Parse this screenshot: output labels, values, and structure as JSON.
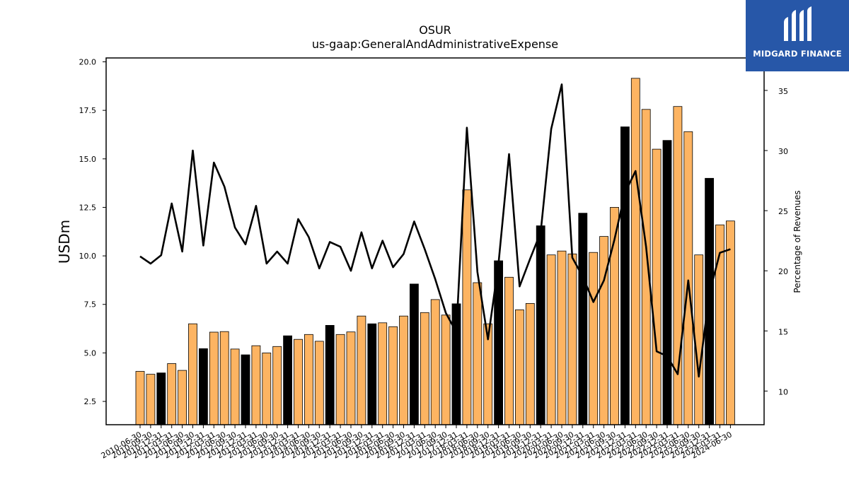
{
  "logo": {
    "text": "MIDGARD FINANCE"
  },
  "chart_data": {
    "type": "bar+line",
    "title": "OSUR",
    "subtitle": "us-gaap:GeneralAndAdministrativeExpense",
    "ylabel": "USDm",
    "y2label": "Percentage of Revenues",
    "ylim": [
      1.3,
      20.2
    ],
    "y2lim": [
      7.2,
      37.7
    ],
    "yticks": [
      "2.5",
      "5.0",
      "7.5",
      "10.0",
      "12.5",
      "15.0",
      "17.5",
      "20.0"
    ],
    "y2ticks": [
      "10",
      "15",
      "20",
      "25",
      "30",
      "35"
    ],
    "colors": {
      "quarter": "#fdb462",
      "annual": "#000000",
      "line": "#000000"
    },
    "categories": [
      "2010-06-30",
      "2010-09-30",
      "2010-12-31",
      "2011-03-31",
      "2011-06-30",
      "2011-09-30",
      "2011-12-31",
      "2012-03-31",
      "2012-06-30",
      "2012-09-30",
      "2012-12-31",
      "2013-03-31",
      "2013-06-30",
      "2013-09-30",
      "2013-12-31",
      "2014-03-31",
      "2014-06-30",
      "2014-09-30",
      "2014-12-31",
      "2015-03-31",
      "2015-06-30",
      "2015-09-30",
      "2015-12-31",
      "2016-03-31",
      "2016-06-30",
      "2016-09-30",
      "2016-12-31",
      "2017-03-31",
      "2017-06-30",
      "2017-09-30",
      "2017-12-31",
      "2018-03-31",
      "2018-06-30",
      "2018-09-30",
      "2018-12-31",
      "2019-03-31",
      "2019-06-30",
      "2019-09-30",
      "2019-12-31",
      "2020-03-31",
      "2020-06-30",
      "2020-09-30",
      "2020-12-31",
      "2021-03-31",
      "2021-06-30",
      "2021-09-30",
      "2021-12-31",
      "2022-03-31",
      "2022-06-30",
      "2022-09-30",
      "2022-12-31",
      "2023-03-31",
      "2023-06-30",
      "2023-09-30",
      "2023-12-31",
      "2024-03-31",
      "2024-06-30"
    ],
    "xticklabels": [
      "2010-06-30",
      "2010-09-30",
      "2010-12-31",
      "2011-03-31",
      "2011-06-30",
      "2011-09-30",
      "2011-12-31",
      "2012-03-31",
      "2012-06-30",
      "2012-09-30",
      "2012-12-31",
      "2013-03-31",
      "2013-06-30",
      "2013-09-30",
      "2013-12-31",
      "2014-03-31",
      "2014-06-30",
      "2014-09-30",
      "2014-12-31",
      "2015-03-31",
      "2015-06-30",
      "2015-09-30",
      "2015-12-31",
      "2016-03-31",
      "2016-06-30",
      "2016-09-30",
      "2016-12-31",
      "2017-03-31",
      "2017-06-30",
      "2017-09-30",
      "2017-12-31",
      "2018-03-31",
      "2018-06-30",
      "2018-09-30",
      "2018-12-31",
      "2019-03-31",
      "2019-06-30",
      "2019-09-30",
      "2019-12-31",
      "2020-03-31",
      "2020-06-30",
      "2020-09-30",
      "2020-12-31",
      "2021-03-31",
      "2021-06-30",
      "2021-09-30",
      "2021-12-31",
      "2022-03-31",
      "2022-06-30",
      "2022-09-30",
      "2022-12-31",
      "2023-03-31",
      "2023-06-30",
      "2023-09-30",
      "2023-12-31",
      "2024-03-31",
      "2024-06-30"
    ],
    "bar_values": [
      4.05,
      3.9,
      3.97,
      4.45,
      4.1,
      6.5,
      5.22,
      6.07,
      6.1,
      5.2,
      4.9,
      5.37,
      5.0,
      5.33,
      5.88,
      5.7,
      5.95,
      5.6,
      6.42,
      5.95,
      6.08,
      6.9,
      6.5,
      6.55,
      6.35,
      6.9,
      8.55,
      7.08,
      7.75,
      6.95,
      7.53,
      13.4,
      8.62,
      6.5,
      9.75,
      8.9,
      7.22,
      7.55,
      11.55,
      10.05,
      10.25,
      10.1,
      12.2,
      10.18,
      11.0,
      12.5,
      16.65,
      19.15,
      17.55,
      15.5,
      15.95,
      17.7,
      16.4,
      10.05,
      14.0,
      11.6,
      11.8
    ],
    "annual_flags": [
      false,
      false,
      true,
      false,
      false,
      false,
      true,
      false,
      false,
      false,
      true,
      false,
      false,
      false,
      true,
      false,
      false,
      false,
      true,
      false,
      false,
      false,
      true,
      false,
      false,
      false,
      true,
      false,
      false,
      false,
      true,
      false,
      false,
      false,
      true,
      false,
      false,
      false,
      true,
      false,
      false,
      false,
      true,
      false,
      false,
      false,
      true,
      false,
      false,
      false,
      true,
      false,
      false,
      false,
      true,
      false,
      false
    ],
    "line_values": [
      21.2,
      20.6,
      21.3,
      25.6,
      21.6,
      30.0,
      22.1,
      29.0,
      27.0,
      23.6,
      22.2,
      25.4,
      20.6,
      21.6,
      20.6,
      24.3,
      22.8,
      20.2,
      22.4,
      22.0,
      20.0,
      23.2,
      20.2,
      22.5,
      20.3,
      21.4,
      24.1,
      21.8,
      19.3,
      16.5,
      14.9,
      31.9,
      19.9,
      14.3,
      20.6,
      29.7,
      18.7,
      21.0,
      23.2,
      31.8,
      35.5,
      21.1,
      19.5,
      17.4,
      19.2,
      22.6,
      26.5,
      28.3,
      22.0,
      13.3,
      12.9,
      11.4,
      19.2,
      11.2,
      18.1,
      21.5,
      21.8
    ]
  }
}
